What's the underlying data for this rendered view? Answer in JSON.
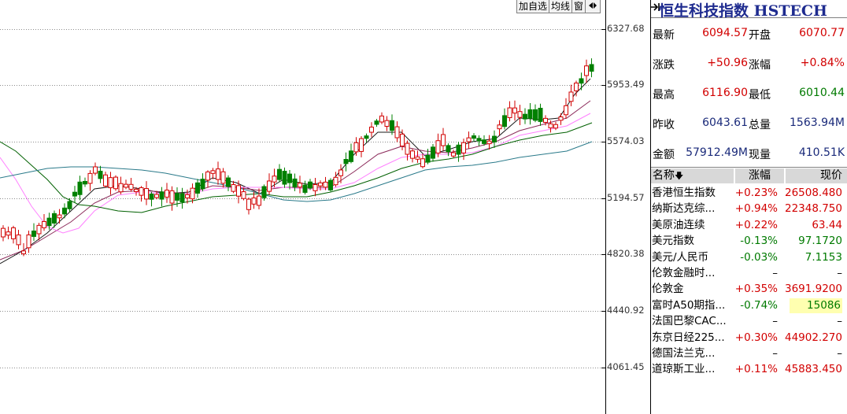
{
  "toolbar": {
    "add_watch": "加自选",
    "ma_line": "均线",
    "window": "窗",
    "arrow": "◀▶"
  },
  "price_axis": [
    "6327.68",
    "5953.49",
    "5574.03",
    "5194.57",
    "4820.38",
    "4440.92",
    "4061.45"
  ],
  "quote": {
    "title": "恒生科技指数 HSTECH",
    "rows": [
      {
        "l1": "最新",
        "v1": "6094.57",
        "c1": "red",
        "l2": "开盘",
        "v2": "6070.77",
        "c2": "red"
      },
      {
        "l1": "涨跌",
        "v1": "+50.96",
        "c1": "red",
        "l2": "涨幅",
        "v2": "+0.84%",
        "c2": "red"
      },
      {
        "l1": "最高",
        "v1": "6116.90",
        "c1": "red",
        "l2": "最低",
        "v2": "6010.44",
        "c2": "green"
      },
      {
        "l1": "昨收",
        "v1": "6043.61",
        "c1": "navy",
        "l2": "总量",
        "v2": "1563.94M",
        "c2": "navy"
      },
      {
        "l1": "金额",
        "v1": "57912.49M",
        "c1": "navy",
        "l2": "现量",
        "v2": "410.51K",
        "c2": "navy"
      }
    ]
  },
  "watchlist": {
    "headers": {
      "name": "名称",
      "sort": "🡇",
      "change": "涨幅",
      "price": "现价"
    },
    "rows": [
      {
        "name": "香港恒生指数",
        "change": "+0.23%",
        "price": "26508.480",
        "color": "red",
        "hl": false
      },
      {
        "name": "纳斯达克综...",
        "change": "+0.94%",
        "price": "22348.750",
        "color": "red",
        "hl": false
      },
      {
        "name": "美原油连续",
        "change": "+0.22%",
        "price": "63.44",
        "color": "red",
        "hl": false
      },
      {
        "name": "美元指数",
        "change": "-0.13%",
        "price": "97.1720",
        "color": "green",
        "hl": false
      },
      {
        "name": "美元/人民币",
        "change": "-0.03%",
        "price": "7.1153",
        "color": "green",
        "hl": false
      },
      {
        "name": "伦敦金融时...",
        "change": "–",
        "price": "–",
        "color": "black",
        "hl": false
      },
      {
        "name": "伦敦金",
        "change": "+0.35%",
        "price": "3691.9200",
        "color": "red",
        "hl": false
      },
      {
        "name": "富时A50期指...",
        "change": "-0.74%",
        "price": "15086",
        "color": "green",
        "hl": true
      },
      {
        "name": "法国巴黎CAC...",
        "change": "–",
        "price": "–",
        "color": "black",
        "hl": false
      },
      {
        "name": "东京日经225...",
        "change": "+0.30%",
        "price": "44902.270",
        "color": "red",
        "hl": false
      },
      {
        "name": "德国法兰克...",
        "change": "–",
        "price": "–",
        "color": "black",
        "hl": false
      },
      {
        "name": "道琼斯工业...",
        "change": "+0.11%",
        "price": "45883.450",
        "color": "red",
        "hl": false
      }
    ]
  },
  "colors": {
    "up": "#d20000",
    "down": "#008000",
    "ma1": "#1a1a1a",
    "ma2": "#8b2a5a",
    "ma3": "#ff80ff",
    "ma4": "#006000",
    "ma5": "#2a7a8a"
  }
}
